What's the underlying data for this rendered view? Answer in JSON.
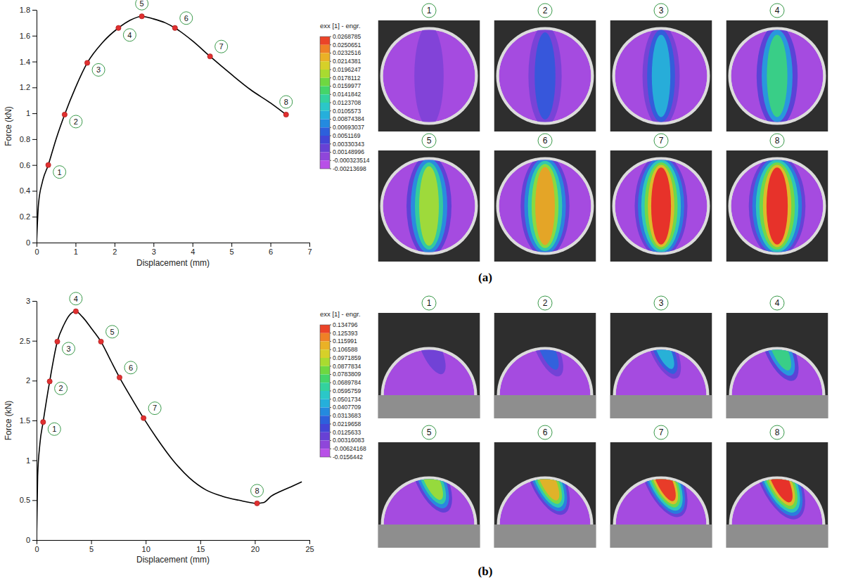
{
  "chart_data": [
    {
      "type": "line",
      "panel": "(a)",
      "x_label": "Displacement (mm)",
      "y_label": "Force (kN)",
      "xlim": [
        0,
        7
      ],
      "ylim": [
        0,
        1.8
      ],
      "xticks": [
        0,
        1,
        2,
        3,
        4,
        5,
        6,
        7
      ],
      "yticks": [
        0,
        0.2,
        0.4,
        0.6,
        0.8,
        1,
        1.2,
        1.4,
        1.6,
        1.8
      ],
      "color": "#000000",
      "x": [
        0,
        0.05,
        0.15,
        0.3,
        0.5,
        0.72,
        1.0,
        1.3,
        1.7,
        2.1,
        2.4,
        2.7,
        3.0,
        3.3,
        3.55,
        4.0,
        4.45,
        5.0,
        5.5,
        6.0,
        6.4
      ],
      "values": [
        0,
        0.3,
        0.47,
        0.6,
        0.8,
        0.99,
        1.2,
        1.39,
        1.55,
        1.66,
        1.72,
        1.75,
        1.73,
        1.7,
        1.66,
        1.56,
        1.44,
        1.3,
        1.18,
        1.08,
        0.99
      ],
      "points": {
        "type": "scatter",
        "marker": "circle",
        "color": "#e03030",
        "x": [
          0.3,
          0.72,
          1.3,
          2.1,
          2.7,
          3.55,
          4.45,
          6.4
        ],
        "values": [
          0.6,
          0.99,
          1.39,
          1.66,
          1.75,
          1.66,
          1.44,
          0.99
        ],
        "labels": [
          "1",
          "2",
          "3",
          "4",
          "5",
          "6",
          "7",
          "8"
        ]
      },
      "colorbar": {
        "title": "exx [1] - engr.",
        "range": [
          -0.00213698,
          0.0268785
        ],
        "ticks": [
          0.0268785,
          0.0250651,
          0.0232516,
          0.0214381,
          0.0196247,
          0.0178112,
          0.0159977,
          0.0141842,
          0.0123708,
          0.0105573,
          0.00874384,
          0.00693037,
          0.0051169,
          0.00330343,
          0.00148996,
          -0.000323514,
          -0.00213698
        ]
      }
    },
    {
      "type": "line",
      "panel": "(b)",
      "x_label": "Displacement (mm)",
      "y_label": "Force (kN)",
      "xlim": [
        0,
        25
      ],
      "ylim": [
        0,
        3
      ],
      "xticks": [
        0,
        5,
        10,
        15,
        20,
        25
      ],
      "yticks": [
        0,
        0.5,
        1,
        1.5,
        2,
        2.5,
        3
      ],
      "color": "#000000",
      "x": [
        0,
        0.1,
        0.3,
        0.6,
        1.2,
        1.9,
        2.5,
        3.0,
        3.6,
        4.2,
        5.0,
        5.9,
        6.8,
        7.6,
        8.7,
        9.8,
        11,
        12.5,
        14,
        15.5,
        17,
        18.5,
        20.2,
        20.8,
        21.5,
        22.5,
        23.5,
        24.3
      ],
      "values": [
        0,
        0.8,
        1.2,
        1.48,
        1.99,
        2.49,
        2.7,
        2.82,
        2.87,
        2.8,
        2.66,
        2.49,
        2.25,
        2.04,
        1.78,
        1.53,
        1.28,
        1.0,
        0.78,
        0.63,
        0.55,
        0.5,
        0.46,
        0.47,
        0.55,
        0.62,
        0.68,
        0.73
      ],
      "points": {
        "type": "scatter",
        "marker": "circle",
        "color": "#e03030",
        "x": [
          0.6,
          1.2,
          1.9,
          3.6,
          5.9,
          7.6,
          9.8,
          20.2
        ],
        "values": [
          1.48,
          1.99,
          2.49,
          2.87,
          2.49,
          2.04,
          1.53,
          0.46
        ],
        "labels": [
          "1",
          "2",
          "3",
          "4",
          "5",
          "6",
          "7",
          "8"
        ]
      },
      "colorbar": {
        "title": "exx [1] - engr.",
        "range": [
          -0.0156442,
          0.134796
        ],
        "ticks": [
          0.134796,
          0.125393,
          0.115991,
          0.106588,
          0.0971859,
          0.0877834,
          0.0783809,
          0.0689784,
          0.0595759,
          0.0501734,
          0.0407709,
          0.0313683,
          0.0219658,
          0.0125633,
          0.00316083,
          -0.00624168,
          -0.0156442
        ]
      }
    }
  ]
}
